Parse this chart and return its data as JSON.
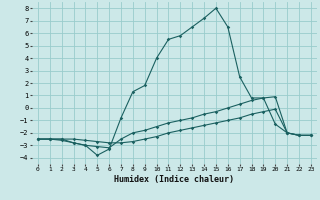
{
  "xlabel": "Humidex (Indice chaleur)",
  "xlim": [
    -0.5,
    23.5
  ],
  "ylim": [
    -4.5,
    8.5
  ],
  "background_color": "#cce8e8",
  "grid_color": "#99cccc",
  "line_color": "#1a6060",
  "x_ticks": [
    0,
    1,
    2,
    3,
    4,
    5,
    6,
    7,
    8,
    9,
    10,
    11,
    12,
    13,
    14,
    15,
    16,
    17,
    18,
    19,
    20,
    21,
    22,
    23
  ],
  "y_ticks": [
    -4,
    -3,
    -2,
    -1,
    0,
    1,
    2,
    3,
    4,
    5,
    6,
    7,
    8
  ],
  "line1_x": [
    0,
    1,
    2,
    3,
    4,
    5,
    6,
    7,
    8,
    9,
    10,
    11,
    12,
    13,
    14,
    15,
    16,
    17,
    18,
    19,
    20,
    21,
    22,
    23
  ],
  "line1_y": [
    -2.5,
    -2.5,
    -2.6,
    -2.8,
    -3.0,
    -3.8,
    -3.3,
    -0.8,
    1.3,
    1.8,
    4.0,
    5.5,
    5.8,
    6.5,
    7.2,
    8.0,
    6.5,
    2.5,
    0.8,
    0.8,
    -1.3,
    -2.0,
    -2.2,
    -2.2
  ],
  "line2_x": [
    0,
    1,
    2,
    3,
    4,
    5,
    6,
    7,
    8,
    9,
    10,
    11,
    12,
    13,
    14,
    15,
    16,
    17,
    18,
    19,
    20,
    21,
    22,
    23
  ],
  "line2_y": [
    -2.5,
    -2.5,
    -2.5,
    -2.8,
    -3.0,
    -3.1,
    -3.2,
    -2.5,
    -2.0,
    -1.8,
    -1.5,
    -1.2,
    -1.0,
    -0.8,
    -0.5,
    -0.3,
    0.0,
    0.3,
    0.6,
    0.8,
    0.9,
    -2.0,
    -2.2,
    -2.2
  ],
  "line3_x": [
    0,
    1,
    2,
    3,
    4,
    5,
    6,
    7,
    8,
    9,
    10,
    11,
    12,
    13,
    14,
    15,
    16,
    17,
    18,
    19,
    20,
    21,
    22,
    23
  ],
  "line3_y": [
    -2.5,
    -2.5,
    -2.5,
    -2.5,
    -2.6,
    -2.7,
    -2.8,
    -2.8,
    -2.7,
    -2.5,
    -2.3,
    -2.0,
    -1.8,
    -1.6,
    -1.4,
    -1.2,
    -1.0,
    -0.8,
    -0.5,
    -0.3,
    -0.1,
    -2.0,
    -2.2,
    -2.2
  ]
}
